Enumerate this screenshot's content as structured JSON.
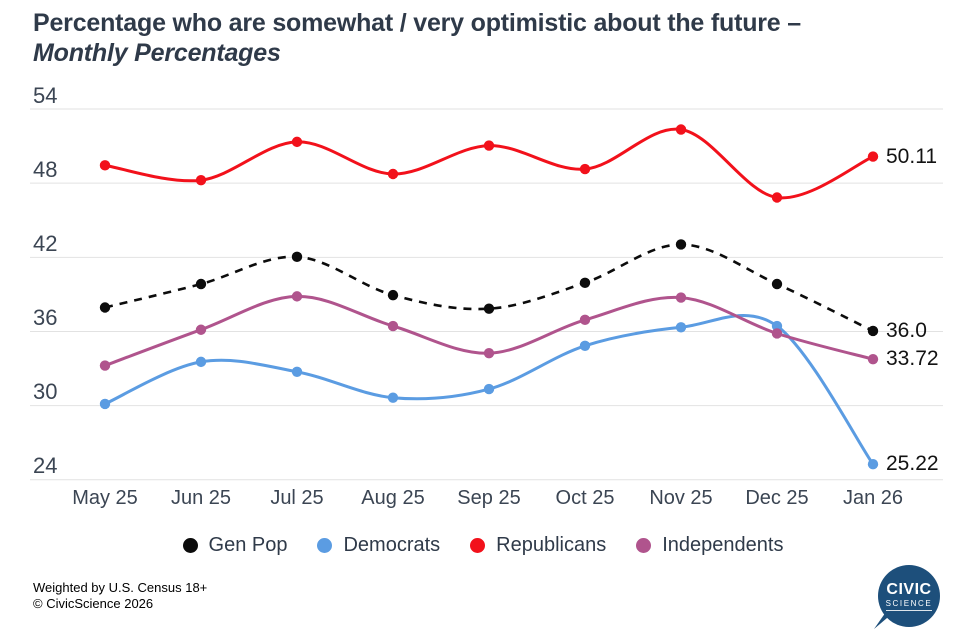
{
  "title": {
    "line1": "Percentage who are somewhat / very optimistic about the future  –",
    "line2": "Monthly Percentages"
  },
  "chart_data": {
    "type": "line",
    "title": "Percentage who are somewhat / very optimistic about the future – Monthly Percentages",
    "categories": [
      "May 25",
      "Jun 25",
      "Jul 25",
      "Aug 25",
      "Sep 25",
      "Oct 25",
      "Nov 25",
      "Dec 25",
      "Jan 26"
    ],
    "series": [
      {
        "name": "Gen Pop",
        "color": "#0c0c0c",
        "dashed": true,
        "values": [
          37.9,
          39.8,
          42.0,
          38.9,
          37.8,
          39.9,
          43.0,
          39.8,
          36.0
        ],
        "end_label": "36.0"
      },
      {
        "name": "Democrats",
        "color": "#5b9ce2",
        "dashed": false,
        "values": [
          30.1,
          33.5,
          32.7,
          30.6,
          31.3,
          34.8,
          36.3,
          36.4,
          25.22
        ],
        "end_label": "25.22"
      },
      {
        "name": "Republicans",
        "color": "#f2111b",
        "dashed": false,
        "values": [
          49.4,
          48.2,
          51.3,
          48.7,
          51.0,
          49.1,
          52.3,
          46.8,
          50.11
        ],
        "end_label": "50.11"
      },
      {
        "name": "Independents",
        "color": "#b0548d",
        "dashed": false,
        "values": [
          33.2,
          36.1,
          38.8,
          36.4,
          34.2,
          36.9,
          38.7,
          35.8,
          33.72
        ],
        "end_label": "33.72"
      }
    ],
    "ylim": [
      24,
      54
    ],
    "yticks": [
      54,
      48,
      42,
      36,
      30,
      24
    ],
    "grid": true,
    "gridline_color": "#e2e2e2",
    "legend_position": "bottom"
  },
  "footer": {
    "line1": "Weighted by U.S. Census 18+",
    "line2": "© CivicScience 2026"
  },
  "logo": {
    "line1": "CIVIC",
    "line2": "SCIENCE"
  }
}
